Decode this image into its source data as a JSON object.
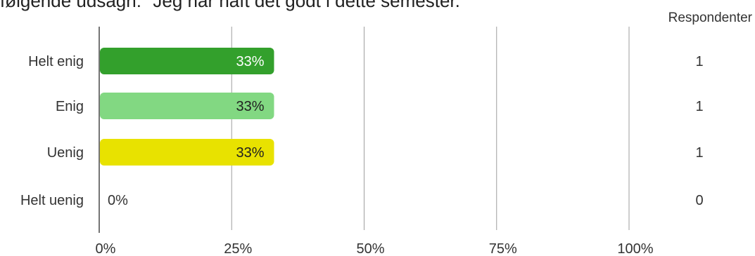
{
  "title": "følgende udsagn: \"Jeg har haft det godt i dette semester.\"",
  "respondents_header": "Respondenter",
  "chart_data": {
    "type": "bar",
    "orientation": "horizontal",
    "categories": [
      "Helt enig",
      "Enig",
      "Uenig",
      "Helt uenig"
    ],
    "values": [
      33,
      33,
      33,
      0
    ],
    "value_labels": [
      "33%",
      "33%",
      "33%",
      "0%"
    ],
    "respondents": [
      1,
      1,
      1,
      0
    ],
    "colors": [
      "#33a02c",
      "#82d882",
      "#e8e200",
      "#cccccc"
    ],
    "value_label_colors": [
      "#ffffff",
      "#212121",
      "#212121",
      "#333333"
    ],
    "xlim": [
      0,
      100
    ],
    "xticks": [
      0,
      25,
      50,
      75,
      100
    ],
    "xtick_labels": [
      "0%",
      "25%",
      "50%",
      "75%",
      "100%"
    ],
    "grid": true
  }
}
